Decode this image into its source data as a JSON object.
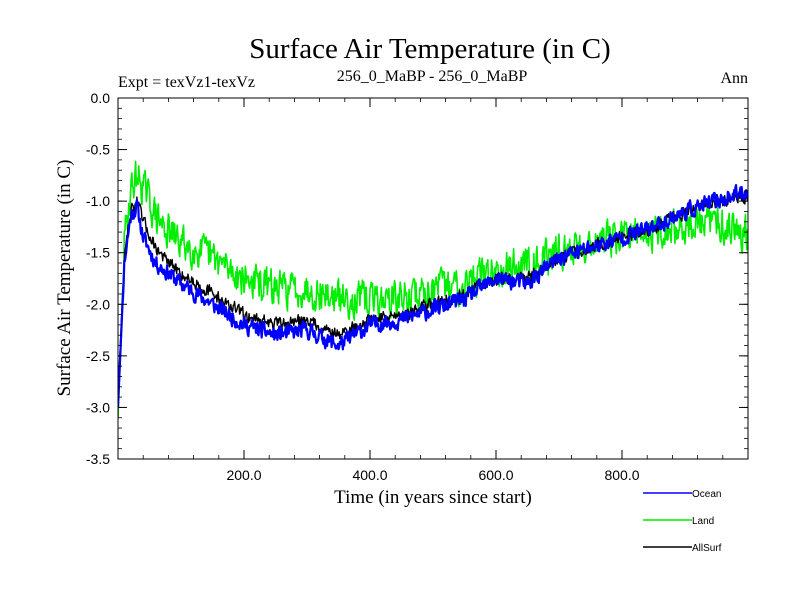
{
  "chart_data": {
    "type": "line",
    "title": "Surface Air Temperature (in C)",
    "subtitle_left": "Expt = texVz1-texVz",
    "subtitle_center": "256_0_MaBP - 256_0_MaBP",
    "subtitle_right": "Ann",
    "xlabel": "Time (in years since start)",
    "ylabel": "Surface Air Temperature (in C)",
    "xlim": [
      0,
      1000
    ],
    "ylim": [
      -3.5,
      0.0
    ],
    "x_ticks": [
      200,
      400,
      600,
      800
    ],
    "x_tick_labels": [
      "200.0",
      "400.0",
      "600.0",
      "800.0"
    ],
    "y_ticks": [
      0.0,
      -0.5,
      -1.0,
      -1.5,
      -2.0,
      -2.5,
      -3.0,
      -3.5
    ],
    "y_tick_labels": [
      "0.0",
      "-0.5",
      "-1.0",
      "-1.5",
      "-2.0",
      "-2.5",
      "-3.0",
      "-3.5"
    ],
    "legend_position": "bottom-right",
    "series": [
      {
        "name": "Ocean",
        "color": "#0000ff",
        "x": [
          0,
          10,
          20,
          30,
          40,
          60,
          80,
          100,
          150,
          200,
          250,
          300,
          350,
          400,
          450,
          500,
          550,
          600,
          650,
          700,
          750,
          800,
          850,
          900,
          950,
          1000
        ],
        "values": [
          -3.0,
          -1.6,
          -1.15,
          -1.05,
          -1.35,
          -1.6,
          -1.7,
          -1.8,
          -2.0,
          -2.2,
          -2.3,
          -2.25,
          -2.4,
          -2.2,
          -2.15,
          -2.05,
          -1.95,
          -1.75,
          -1.8,
          -1.55,
          -1.45,
          -1.35,
          -1.25,
          -1.1,
          -1.0,
          -0.9
        ],
        "noise": 0.11,
        "seed": 11
      },
      {
        "name": "Land",
        "color": "#00ee00",
        "x": [
          0,
          10,
          20,
          30,
          40,
          60,
          80,
          100,
          150,
          200,
          250,
          300,
          350,
          400,
          450,
          500,
          550,
          600,
          650,
          700,
          750,
          800,
          850,
          900,
          950,
          1000
        ],
        "values": [
          -3.1,
          -1.4,
          -0.9,
          -0.75,
          -0.85,
          -1.15,
          -1.3,
          -1.4,
          -1.55,
          -1.75,
          -1.85,
          -1.85,
          -1.95,
          -1.95,
          -1.95,
          -1.85,
          -1.8,
          -1.65,
          -1.6,
          -1.5,
          -1.4,
          -1.35,
          -1.3,
          -1.25,
          -1.2,
          -1.3
        ],
        "noise": 0.24,
        "seed": 29
      },
      {
        "name": "AllSurf",
        "color": "#000000",
        "x": [
          0,
          10,
          20,
          30,
          40,
          60,
          80,
          100,
          150,
          200,
          250,
          300,
          350,
          400,
          450,
          500,
          550,
          600,
          650,
          700,
          750,
          800,
          850,
          900,
          950,
          1000
        ],
        "values": [
          -2.9,
          -1.55,
          -1.1,
          -1.0,
          -1.2,
          -1.45,
          -1.6,
          -1.7,
          -1.9,
          -2.1,
          -2.2,
          -2.15,
          -2.3,
          -2.15,
          -2.1,
          -2.0,
          -1.9,
          -1.75,
          -1.75,
          -1.55,
          -1.45,
          -1.35,
          -1.25,
          -1.1,
          -1.0,
          -0.95
        ],
        "noise": 0.09,
        "seed": 47
      }
    ]
  }
}
